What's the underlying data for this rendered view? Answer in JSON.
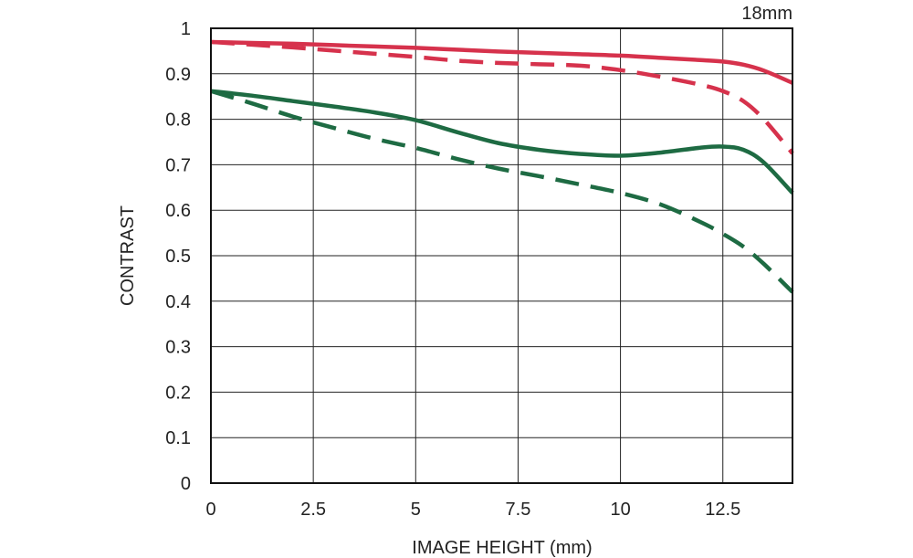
{
  "chart_data": {
    "type": "line",
    "title": "18mm",
    "xlabel": "IMAGE HEIGHT (mm)",
    "ylabel": "CONTRAST",
    "xlim": [
      0,
      14.2
    ],
    "ylim": [
      0,
      1
    ],
    "grid": true,
    "x_ticks": [
      0,
      2.5,
      5,
      7.5,
      10,
      12.5
    ],
    "x_tick_labels": [
      "0",
      "2.5",
      "5",
      "7.5",
      "10",
      "12.5"
    ],
    "y_ticks": [
      0,
      0.1,
      0.2,
      0.3,
      0.4,
      0.5,
      0.6,
      0.7,
      0.8,
      0.9,
      1
    ],
    "y_tick_labels": [
      "0",
      "0.1",
      "0.2",
      "0.3",
      "0.4",
      "0.5",
      "0.6",
      "0.7",
      "0.8",
      "0.9",
      "1"
    ],
    "series": [
      {
        "color": "#d6324c",
        "dash": "solid",
        "x": [
          0,
          1,
          2,
          3,
          4,
          5,
          6,
          7,
          8,
          9,
          10,
          11,
          12,
          12.5,
          13,
          13.5,
          14.2
        ],
        "y": [
          0.97,
          0.968,
          0.966,
          0.963,
          0.96,
          0.957,
          0.953,
          0.949,
          0.946,
          0.943,
          0.94,
          0.935,
          0.93,
          0.927,
          0.92,
          0.907,
          0.88
        ]
      },
      {
        "color": "#d6324c",
        "dash": "dashed",
        "x": [
          0,
          1,
          2,
          3,
          4,
          5,
          6,
          7,
          8,
          9,
          10,
          11,
          12,
          12.5,
          13,
          13.5,
          14.2
        ],
        "y": [
          0.97,
          0.964,
          0.958,
          0.951,
          0.944,
          0.937,
          0.929,
          0.924,
          0.921,
          0.918,
          0.908,
          0.893,
          0.875,
          0.862,
          0.84,
          0.8,
          0.725
        ]
      },
      {
        "color": "#1e6b43",
        "dash": "solid",
        "x": [
          0,
          1,
          2,
          3,
          4,
          5,
          6,
          7,
          8,
          9,
          10,
          11,
          12,
          12.5,
          13,
          13.5,
          14.2
        ],
        "y": [
          0.862,
          0.852,
          0.84,
          0.828,
          0.815,
          0.798,
          0.772,
          0.748,
          0.733,
          0.724,
          0.72,
          0.727,
          0.738,
          0.74,
          0.733,
          0.705,
          0.638
        ]
      },
      {
        "color": "#1e6b43",
        "dash": "dashed",
        "x": [
          0,
          1,
          2,
          3,
          4,
          5,
          6,
          7,
          8,
          9,
          10,
          11,
          12,
          12.5,
          13,
          13.5,
          14.2
        ],
        "y": [
          0.862,
          0.835,
          0.806,
          0.781,
          0.757,
          0.737,
          0.713,
          0.692,
          0.675,
          0.657,
          0.638,
          0.612,
          0.572,
          0.548,
          0.52,
          0.482,
          0.42
        ]
      }
    ]
  }
}
